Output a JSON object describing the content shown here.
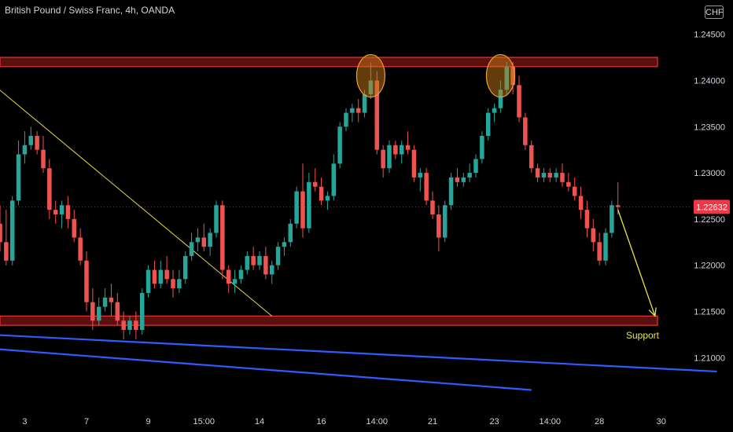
{
  "header": {
    "title": "British Pound / Swiss Franc, 4h, OANDA",
    "currency": "CHF"
  },
  "colors": {
    "background": "#000000",
    "up": "#26a69a",
    "down": "#ef5350",
    "zone_fill": "#7a1414",
    "zone_border": "#e53935",
    "trendline": "#e8d44d",
    "channel": "#2f5bff",
    "circle_fill": "#c77a1a",
    "circle_stroke": "#f0a030",
    "price_label": "#f23645",
    "arrow": "#e8e34a"
  },
  "chart_data": {
    "type": "candlestick",
    "title": "British Pound / Swiss Franc, 4h, OANDA",
    "ylabel": "CHF",
    "ylim": [
      1.2045,
      1.2482
    ],
    "y_ticks": [
      "1.24500",
      "1.24000",
      "1.23500",
      "1.23000",
      "1.22500",
      "1.22000",
      "1.21500",
      "1.21000"
    ],
    "y_tick_values": [
      1.245,
      1.24,
      1.235,
      1.23,
      1.225,
      1.22,
      1.215,
      1.21
    ],
    "x_ticks": [
      "3",
      "7",
      "9",
      "15:00",
      "14",
      "16",
      "14:00",
      "21",
      "23",
      "14:00",
      "28",
      "30"
    ],
    "x_tick_index": [
      4,
      14,
      24,
      33,
      42,
      52,
      61,
      70,
      80,
      89,
      97,
      107
    ],
    "index_range": [
      0,
      112
    ],
    "last_price": "1.22632",
    "last_price_value": 1.22632,
    "candles": [
      [
        1.2245,
        1.2265,
        1.2215,
        1.2225
      ],
      [
        1.2225,
        1.226,
        1.22,
        1.2205
      ],
      [
        1.2205,
        1.2275,
        1.22,
        1.227
      ],
      [
        1.227,
        1.2335,
        1.2265,
        1.232
      ],
      [
        1.232,
        1.2345,
        1.231,
        1.233
      ],
      [
        1.233,
        1.235,
        1.2325,
        1.234
      ],
      [
        1.234,
        1.2345,
        1.232,
        1.2325
      ],
      [
        1.2325,
        1.234,
        1.23,
        1.2305
      ],
      [
        1.2305,
        1.2315,
        1.225,
        1.226
      ],
      [
        1.226,
        1.227,
        1.2245,
        1.2255
      ],
      [
        1.2255,
        1.227,
        1.224,
        1.2265
      ],
      [
        1.2265,
        1.2275,
        1.224,
        1.225
      ],
      [
        1.225,
        1.226,
        1.2225,
        1.223
      ],
      [
        1.223,
        1.224,
        1.22,
        1.2205
      ],
      [
        1.2205,
        1.2215,
        1.215,
        1.216
      ],
      [
        1.216,
        1.2175,
        1.213,
        1.214
      ],
      [
        1.214,
        1.2165,
        1.2135,
        1.2155
      ],
      [
        1.2155,
        1.2175,
        1.215,
        1.2165
      ],
      [
        1.2165,
        1.218,
        1.2145,
        1.216
      ],
      [
        1.216,
        1.217,
        1.2135,
        1.214
      ],
      [
        1.214,
        1.215,
        1.212,
        1.213
      ],
      [
        1.213,
        1.2145,
        1.2125,
        1.214
      ],
      [
        1.214,
        1.215,
        1.212,
        1.213
      ],
      [
        1.213,
        1.2175,
        1.2125,
        1.217
      ],
      [
        1.217,
        1.22,
        1.2165,
        1.2195
      ],
      [
        1.2195,
        1.2205,
        1.2175,
        1.218
      ],
      [
        1.218,
        1.2205,
        1.2175,
        1.2195
      ],
      [
        1.2195,
        1.221,
        1.218,
        1.2185
      ],
      [
        1.2185,
        1.2195,
        1.2165,
        1.2175
      ],
      [
        1.2175,
        1.2195,
        1.217,
        1.2185
      ],
      [
        1.2185,
        1.2215,
        1.218,
        1.221
      ],
      [
        1.221,
        1.2235,
        1.2205,
        1.2225
      ],
      [
        1.2225,
        1.224,
        1.2215,
        1.223
      ],
      [
        1.223,
        1.2245,
        1.2215,
        1.222
      ],
      [
        1.222,
        1.224,
        1.221,
        1.2235
      ],
      [
        1.2235,
        1.227,
        1.223,
        1.2265
      ],
      [
        1.2265,
        1.227,
        1.2185,
        1.2195
      ],
      [
        1.2195,
        1.22,
        1.217,
        1.218
      ],
      [
        1.218,
        1.2195,
        1.217,
        1.2185
      ],
      [
        1.2185,
        1.22,
        1.218,
        1.2195
      ],
      [
        1.2195,
        1.2215,
        1.219,
        1.221
      ],
      [
        1.221,
        1.222,
        1.2195,
        1.22
      ],
      [
        1.22,
        1.2215,
        1.2195,
        1.221
      ],
      [
        1.221,
        1.222,
        1.2185,
        1.219
      ],
      [
        1.219,
        1.2205,
        1.218,
        1.22
      ],
      [
        1.22,
        1.2225,
        1.2195,
        1.222
      ],
      [
        1.222,
        1.223,
        1.221,
        1.2225
      ],
      [
        1.2225,
        1.225,
        1.222,
        1.2245
      ],
      [
        1.2245,
        1.2285,
        1.224,
        1.228
      ],
      [
        1.228,
        1.231,
        1.223,
        1.224
      ],
      [
        1.224,
        1.23,
        1.2235,
        1.229
      ],
      [
        1.229,
        1.2305,
        1.228,
        1.2285
      ],
      [
        1.2285,
        1.2295,
        1.2265,
        1.227
      ],
      [
        1.227,
        1.228,
        1.226,
        1.2275
      ],
      [
        1.2275,
        1.232,
        1.227,
        1.231
      ],
      [
        1.231,
        1.2355,
        1.2305,
        1.235
      ],
      [
        1.235,
        1.237,
        1.2345,
        1.2365
      ],
      [
        1.2365,
        1.2375,
        1.2355,
        1.237
      ],
      [
        1.237,
        1.238,
        1.2355,
        1.2365
      ],
      [
        1.2365,
        1.239,
        1.236,
        1.2385
      ],
      [
        1.2385,
        1.242,
        1.238,
        1.24
      ],
      [
        1.24,
        1.241,
        1.232,
        1.2325
      ],
      [
        1.2325,
        1.233,
        1.2295,
        1.2305
      ],
      [
        1.2305,
        1.2335,
        1.23,
        1.233
      ],
      [
        1.233,
        1.2335,
        1.2315,
        1.232
      ],
      [
        1.232,
        1.2335,
        1.231,
        1.233
      ],
      [
        1.233,
        1.2345,
        1.232,
        1.2325
      ],
      [
        1.2325,
        1.233,
        1.229,
        1.2295
      ],
      [
        1.2295,
        1.2305,
        1.228,
        1.23
      ],
      [
        1.23,
        1.2305,
        1.2265,
        1.227
      ],
      [
        1.227,
        1.228,
        1.225,
        1.2255
      ],
      [
        1.2255,
        1.2265,
        1.2215,
        1.223
      ],
      [
        1.223,
        1.227,
        1.2225,
        1.2265
      ],
      [
        1.2265,
        1.23,
        1.226,
        1.2295
      ],
      [
        1.2295,
        1.2305,
        1.2285,
        1.229
      ],
      [
        1.229,
        1.23,
        1.2285,
        1.2295
      ],
      [
        1.2295,
        1.231,
        1.229,
        1.23
      ],
      [
        1.23,
        1.232,
        1.2295,
        1.2315
      ],
      [
        1.2315,
        1.2345,
        1.231,
        1.234
      ],
      [
        1.234,
        1.237,
        1.2335,
        1.2365
      ],
      [
        1.2365,
        1.2375,
        1.2355,
        1.237
      ],
      [
        1.237,
        1.24,
        1.2365,
        1.239
      ],
      [
        1.239,
        1.242,
        1.2385,
        1.2415
      ],
      [
        1.2415,
        1.242,
        1.2385,
        1.2395
      ],
      [
        1.2395,
        1.2405,
        1.2355,
        1.236
      ],
      [
        1.236,
        1.2365,
        1.2325,
        1.233
      ],
      [
        1.233,
        1.2335,
        1.23,
        1.2305
      ],
      [
        1.2305,
        1.231,
        1.229,
        1.2295
      ],
      [
        1.2295,
        1.2305,
        1.229,
        1.23
      ],
      [
        1.23,
        1.2305,
        1.229,
        1.2295
      ],
      [
        1.2295,
        1.2305,
        1.229,
        1.23
      ],
      [
        1.23,
        1.231,
        1.2285,
        1.229
      ],
      [
        1.229,
        1.23,
        1.228,
        1.2285
      ],
      [
        1.2285,
        1.2295,
        1.227,
        1.2275
      ],
      [
        1.2275,
        1.2285,
        1.225,
        1.226
      ],
      [
        1.226,
        1.227,
        1.223,
        1.224
      ],
      [
        1.224,
        1.225,
        1.2215,
        1.2225
      ],
      [
        1.2225,
        1.2235,
        1.22,
        1.2205
      ],
      [
        1.2205,
        1.224,
        1.22,
        1.2235
      ],
      [
        1.2235,
        1.227,
        1.223,
        1.2265
      ],
      [
        1.2265,
        1.229,
        1.2255,
        1.2263
      ]
    ],
    "annotations": {
      "resistance_zone": [
        1.2415,
        1.2425
      ],
      "support_zone": [
        1.2135,
        1.2145
      ],
      "support_label": "Support",
      "trendline": [
        [
          -1,
          1.2395
        ],
        [
          44,
          1.2145
        ]
      ],
      "channel_lines": [
        [
          [
            -2,
            1.2125
          ],
          [
            116,
            1.2085
          ]
        ],
        [
          [
            -2,
            1.211
          ],
          [
            86,
            1.2065
          ]
        ]
      ],
      "circles": [
        [
          60,
          1.2405
        ],
        [
          81,
          1.2405
        ]
      ],
      "arrow": [
        [
          100,
          1.226
        ],
        [
          106,
          1.2145
        ]
      ]
    },
    "grid": false,
    "legend": "none"
  }
}
